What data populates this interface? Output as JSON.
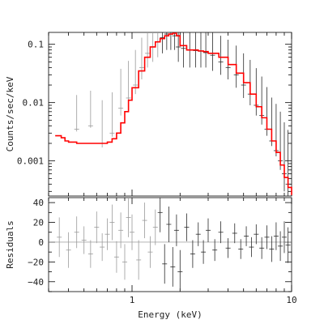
{
  "chart_data": [
    {
      "type": "line",
      "panel": "spectrum",
      "title": "",
      "xlabel": "",
      "ylabel": "Counts/sec/keV",
      "xscale": "log",
      "yscale": "log",
      "xlim": [
        0.3,
        10
      ],
      "ylim": [
        0.00025,
        0.16
      ],
      "yticks": [
        0.001,
        0.01,
        0.1
      ],
      "ytick_labels": [
        "0.001",
        "0.01",
        "0.1"
      ],
      "series": [
        {
          "color": "#ff0000",
          "kind": "step",
          "x": [
            0.33,
            0.36,
            0.38,
            0.4,
            0.45,
            0.5,
            0.55,
            0.6,
            0.65,
            0.7,
            0.75,
            0.8,
            0.85,
            0.9,
            0.95,
            1.0,
            1.1,
            1.2,
            1.3,
            1.4,
            1.5,
            1.6,
            1.7,
            1.8,
            1.9,
            2.0,
            2.2,
            2.4,
            2.6,
            2.8,
            3.0,
            3.5,
            4.0,
            4.5,
            5.0,
            5.5,
            6.0,
            6.5,
            7.0,
            7.5,
            8.0,
            8.5,
            9.0,
            9.5,
            10.0
          ],
          "y": [
            0.0027,
            0.0025,
            0.0022,
            0.0021,
            0.002,
            0.002,
            0.002,
            0.002,
            0.002,
            0.0021,
            0.0024,
            0.003,
            0.0045,
            0.007,
            0.011,
            0.018,
            0.035,
            0.06,
            0.09,
            0.11,
            0.125,
            0.14,
            0.15,
            0.155,
            0.14,
            0.095,
            0.08,
            0.08,
            0.077,
            0.075,
            0.07,
            0.06,
            0.045,
            0.032,
            0.022,
            0.014,
            0.0085,
            0.0055,
            0.0035,
            0.0022,
            0.0014,
            0.00085,
            0.00052,
            0.00035,
            0.00026
          ]
        },
        {
          "color": "#000000",
          "kind": "data-with-errors",
          "x": [
            0.45,
            0.55,
            0.65,
            0.75,
            0.85,
            0.95,
            1.05,
            1.15,
            1.25,
            1.35,
            1.45,
            1.55,
            1.65,
            1.75,
            1.85,
            1.95,
            2.1,
            2.3,
            2.5,
            2.7,
            2.9,
            3.2,
            3.6,
            4.0,
            4.5,
            5.0,
            5.5,
            6.0,
            6.5,
            7.0,
            7.5,
            8.0,
            8.5,
            9.0,
            9.5
          ],
          "y": [
            0.0035,
            0.004,
            0.002,
            0.003,
            0.008,
            0.012,
            0.02,
            0.04,
            0.07,
            0.09,
            0.11,
            0.13,
            0.15,
            0.16,
            0.14,
            0.09,
            0.085,
            0.08,
            0.078,
            0.076,
            0.072,
            0.065,
            0.05,
            0.04,
            0.03,
            0.02,
            0.014,
            0.009,
            0.006,
            0.0035,
            0.0022,
            0.0015,
            0.001,
            0.0006,
            0.0004
          ],
          "err_low": [
            0.0003,
            0.0003,
            0.0003,
            0.0004,
            0.002,
            0.004,
            0.006,
            0.015,
            0.03,
            0.04,
            0.05,
            0.06,
            0.07,
            0.08,
            0.06,
            0.04,
            0.045,
            0.04,
            0.038,
            0.036,
            0.032,
            0.03,
            0.02,
            0.015,
            0.012,
            0.008,
            0.005,
            0.003,
            0.0018,
            0.0008,
            0.0004,
            0.0003,
            0.0003,
            0.0003,
            0.0003
          ],
          "err_high": [
            0.01,
            0.012,
            0.009,
            0.012,
            0.03,
            0.04,
            0.06,
            0.09,
            0.12,
            0.14,
            0.16,
            0.16,
            0.16,
            0.16,
            0.16,
            0.14,
            0.13,
            0.12,
            0.12,
            0.115,
            0.11,
            0.1,
            0.09,
            0.08,
            0.065,
            0.05,
            0.04,
            0.03,
            0.022,
            0.015,
            0.01,
            0.008,
            0.006,
            0.004,
            0.003
          ]
        }
      ]
    },
    {
      "type": "scatter",
      "panel": "residuals",
      "title": "",
      "xlabel": "Energy (keV)",
      "ylabel": "Residuals",
      "xscale": "log",
      "xlim": [
        0.3,
        10
      ],
      "ylim": [
        -50,
        45
      ],
      "xticks": [
        1,
        10
      ],
      "xtick_labels": [
        "1",
        "10"
      ],
      "yticks": [
        -40,
        -20,
        0,
        20,
        40
      ],
      "ytick_labels": [
        "−40",
        "−20",
        "0",
        "20",
        "40"
      ],
      "zero_line": true,
      "series": [
        {
          "color": "#000000",
          "x": [
            0.35,
            0.4,
            0.45,
            0.5,
            0.55,
            0.6,
            0.65,
            0.7,
            0.75,
            0.8,
            0.85,
            0.9,
            0.95,
            1.0,
            1.1,
            1.2,
            1.3,
            1.4,
            1.5,
            1.6,
            1.7,
            1.8,
            1.9,
            2.0,
            2.2,
            2.4,
            2.6,
            2.8,
            3.0,
            3.3,
            3.6,
            4.0,
            4.4,
            4.8,
            5.2,
            5.6,
            6.0,
            6.5,
            7.0,
            7.5,
            8.0,
            8.5,
            9.0,
            9.5
          ],
          "y": [
            5,
            -8,
            10,
            2,
            -12,
            15,
            -5,
            8,
            20,
            -15,
            12,
            -20,
            25,
            10,
            -18,
            22,
            -10,
            15,
            30,
            -22,
            18,
            -25,
            12,
            -30,
            15,
            -12,
            8,
            -10,
            12,
            -8,
            10,
            -6,
            9,
            -7,
            6,
            -5,
            8,
            -6,
            5,
            -7,
            6,
            -4,
            5,
            -3
          ],
          "err": [
            20,
            18,
            16,
            14,
            14,
            16,
            14,
            16,
            18,
            16,
            18,
            18,
            20,
            18,
            20,
            18,
            16,
            18,
            20,
            20,
            18,
            20,
            16,
            22,
            14,
            14,
            12,
            12,
            12,
            11,
            11,
            10,
            10,
            10,
            10,
            10,
            10,
            11,
            12,
            13,
            14,
            15,
            16,
            18
          ]
        }
      ]
    }
  ]
}
